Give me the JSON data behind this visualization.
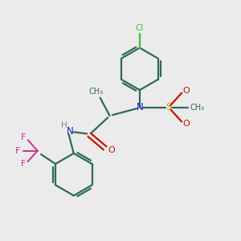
{
  "bg_color": "#ebebeb",
  "bond_color": "#2a6b58",
  "cl_color": "#44bb44",
  "n_color": "#1a1acc",
  "o_color": "#cc1100",
  "s_color": "#bbaa00",
  "f_color": "#cc3399",
  "h_color": "#778899",
  "lw": 1.6,
  "xlim": [
    0,
    10
  ],
  "ylim": [
    0,
    10
  ],
  "figsize": [
    3.0,
    3.0
  ],
  "dpi": 100
}
